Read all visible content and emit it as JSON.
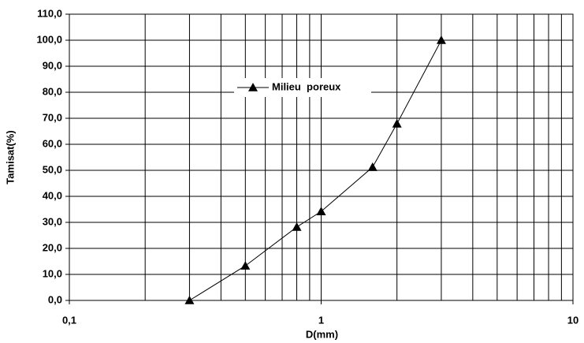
{
  "chart_data": {
    "type": "line",
    "x_label": "D(mm)",
    "y_label": "Tamisat(%)",
    "log_x": true,
    "grid": true,
    "minor_grid": true,
    "legend": "top",
    "xlim": [
      0.1,
      10
    ],
    "xticks": [
      {
        "value": 0.1,
        "label": "0,1"
      },
      1,
      10
    ],
    "ylim": [
      0,
      110
    ],
    "yticks": [
      {
        "value": 0,
        "label": "0,0"
      },
      {
        "value": 10,
        "label": "10,0"
      },
      {
        "value": 20,
        "label": "20,0"
      },
      {
        "value": 30,
        "label": "30,0"
      },
      {
        "value": 40,
        "label": "40,0"
      },
      {
        "value": 50,
        "label": "50,0"
      },
      {
        "value": 60,
        "label": "60,0"
      },
      {
        "value": 70,
        "label": "70,0"
      },
      {
        "value": 80,
        "label": "80,0"
      },
      {
        "value": 90,
        "label": "90,0"
      },
      {
        "value": 100,
        "label": "100,0"
      },
      {
        "value": 110,
        "label": "110,0"
      }
    ],
    "x": [
      0.3,
      0.5,
      0.8,
      1,
      1.6,
      2,
      3
    ],
    "series": [
      {
        "name": "Milieu  poreux",
        "color": "#000000",
        "marker": "triangle",
        "values": [
          0,
          13.3,
          28.2,
          34.2,
          51.2,
          67.9,
          100
        ]
      }
    ]
  }
}
